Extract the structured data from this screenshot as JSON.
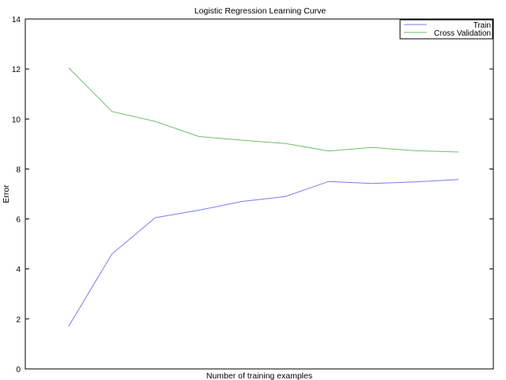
{
  "chart_data": {
    "type": "line",
    "title": "Logistic Regression Learning Curve",
    "xlabel": "Number of training examples",
    "ylabel": "Error",
    "xlim": [
      0,
      10.8
    ],
    "ylim": [
      0,
      14
    ],
    "x": [
      1,
      2,
      3,
      4,
      5,
      6,
      7,
      8,
      9,
      10
    ],
    "yticks": [
      "0",
      "2",
      "4",
      "6",
      "8",
      "10",
      "12",
      "14"
    ],
    "grid": false,
    "legend_position": "top-right",
    "series": [
      {
        "name": "Train",
        "color": "#7b7bf0",
        "values": [
          1.7,
          4.6,
          6.05,
          6.35,
          6.7,
          6.9,
          7.5,
          7.42,
          7.48,
          7.58
        ]
      },
      {
        "name": "Cross Validation",
        "color": "#6fbf6f",
        "values": [
          12.05,
          10.3,
          9.9,
          9.3,
          9.15,
          9.02,
          8.72,
          8.86,
          8.73,
          8.68
        ]
      }
    ]
  }
}
